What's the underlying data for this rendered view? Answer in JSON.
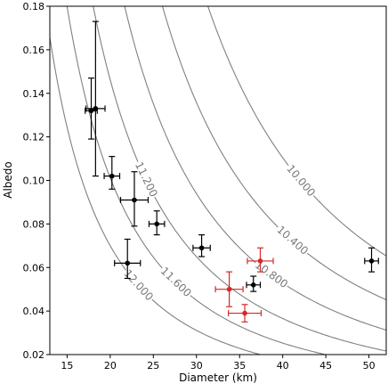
{
  "chart_data": {
    "type": "scatter",
    "title": "",
    "xlabel": "Diameter (km)",
    "ylabel": "Albedo",
    "xlim": [
      13,
      52
    ],
    "ylim": [
      0.02,
      0.18
    ],
    "xticks": [
      15,
      20,
      25,
      30,
      35,
      40,
      45,
      50
    ],
    "yticks": [
      0.02,
      0.04,
      0.06,
      0.08,
      0.1,
      0.12,
      0.14,
      0.16,
      0.18
    ],
    "xtick_labels": [
      "15",
      "20",
      "25",
      "30",
      "35",
      "40",
      "45",
      "50"
    ],
    "ytick_labels": [
      "0.02",
      "0.04",
      "0.06",
      "0.08",
      "0.10",
      "0.12",
      "0.14",
      "0.16",
      "0.18"
    ],
    "grid": false,
    "contours": [
      {
        "label": "10.000",
        "value": 10.0
      },
      {
        "label": "10.400",
        "value": 10.4
      },
      {
        "label": "10.800",
        "value": 10.8
      },
      {
        "label": "11.200",
        "value": 11.2
      },
      {
        "label": "11.600",
        "value": 11.6
      },
      {
        "label": "12.000",
        "value": 12.0
      }
    ],
    "contour_color": "#808080",
    "series": [
      {
        "color": "#000000",
        "points": [
          {
            "x": 17.8,
            "y": 0.132,
            "xerr": 0.7,
            "yerr_low": 0.013,
            "yerr_high": 0.015
          },
          {
            "x": 18.3,
            "y": 0.133,
            "xerr": 1.1,
            "yerr_low": 0.031,
            "yerr_high": 0.04
          },
          {
            "x": 20.2,
            "y": 0.102,
            "xerr": 0.9,
            "yerr_low": 0.006,
            "yerr_high": 0.009
          },
          {
            "x": 22.8,
            "y": 0.091,
            "xerr": 1.6,
            "yerr_low": 0.012,
            "yerr_high": 0.013
          },
          {
            "x": 25.4,
            "y": 0.08,
            "xerr": 0.9,
            "yerr_low": 0.005,
            "yerr_high": 0.006
          },
          {
            "x": 22.0,
            "y": 0.062,
            "xerr": 1.5,
            "yerr_low": 0.007,
            "yerr_high": 0.011
          },
          {
            "x": 30.6,
            "y": 0.069,
            "xerr": 1.0,
            "yerr_low": 0.004,
            "yerr_high": 0.006
          },
          {
            "x": 36.6,
            "y": 0.052,
            "xerr": 0.8,
            "yerr_low": 0.003,
            "yerr_high": 0.004
          },
          {
            "x": 50.3,
            "y": 0.063,
            "xerr": 0.8,
            "yerr_low": 0.005,
            "yerr_high": 0.006
          }
        ]
      },
      {
        "color": "#d62728",
        "points": [
          {
            "x": 33.8,
            "y": 0.05,
            "xerr": 1.6,
            "yerr_low": 0.008,
            "yerr_high": 0.008
          },
          {
            "x": 37.4,
            "y": 0.063,
            "xerr": 1.5,
            "yerr_low": 0.005,
            "yerr_high": 0.006
          },
          {
            "x": 35.6,
            "y": 0.039,
            "xerr": 1.9,
            "yerr_low": 0.004,
            "yerr_high": 0.004
          }
        ]
      }
    ]
  }
}
